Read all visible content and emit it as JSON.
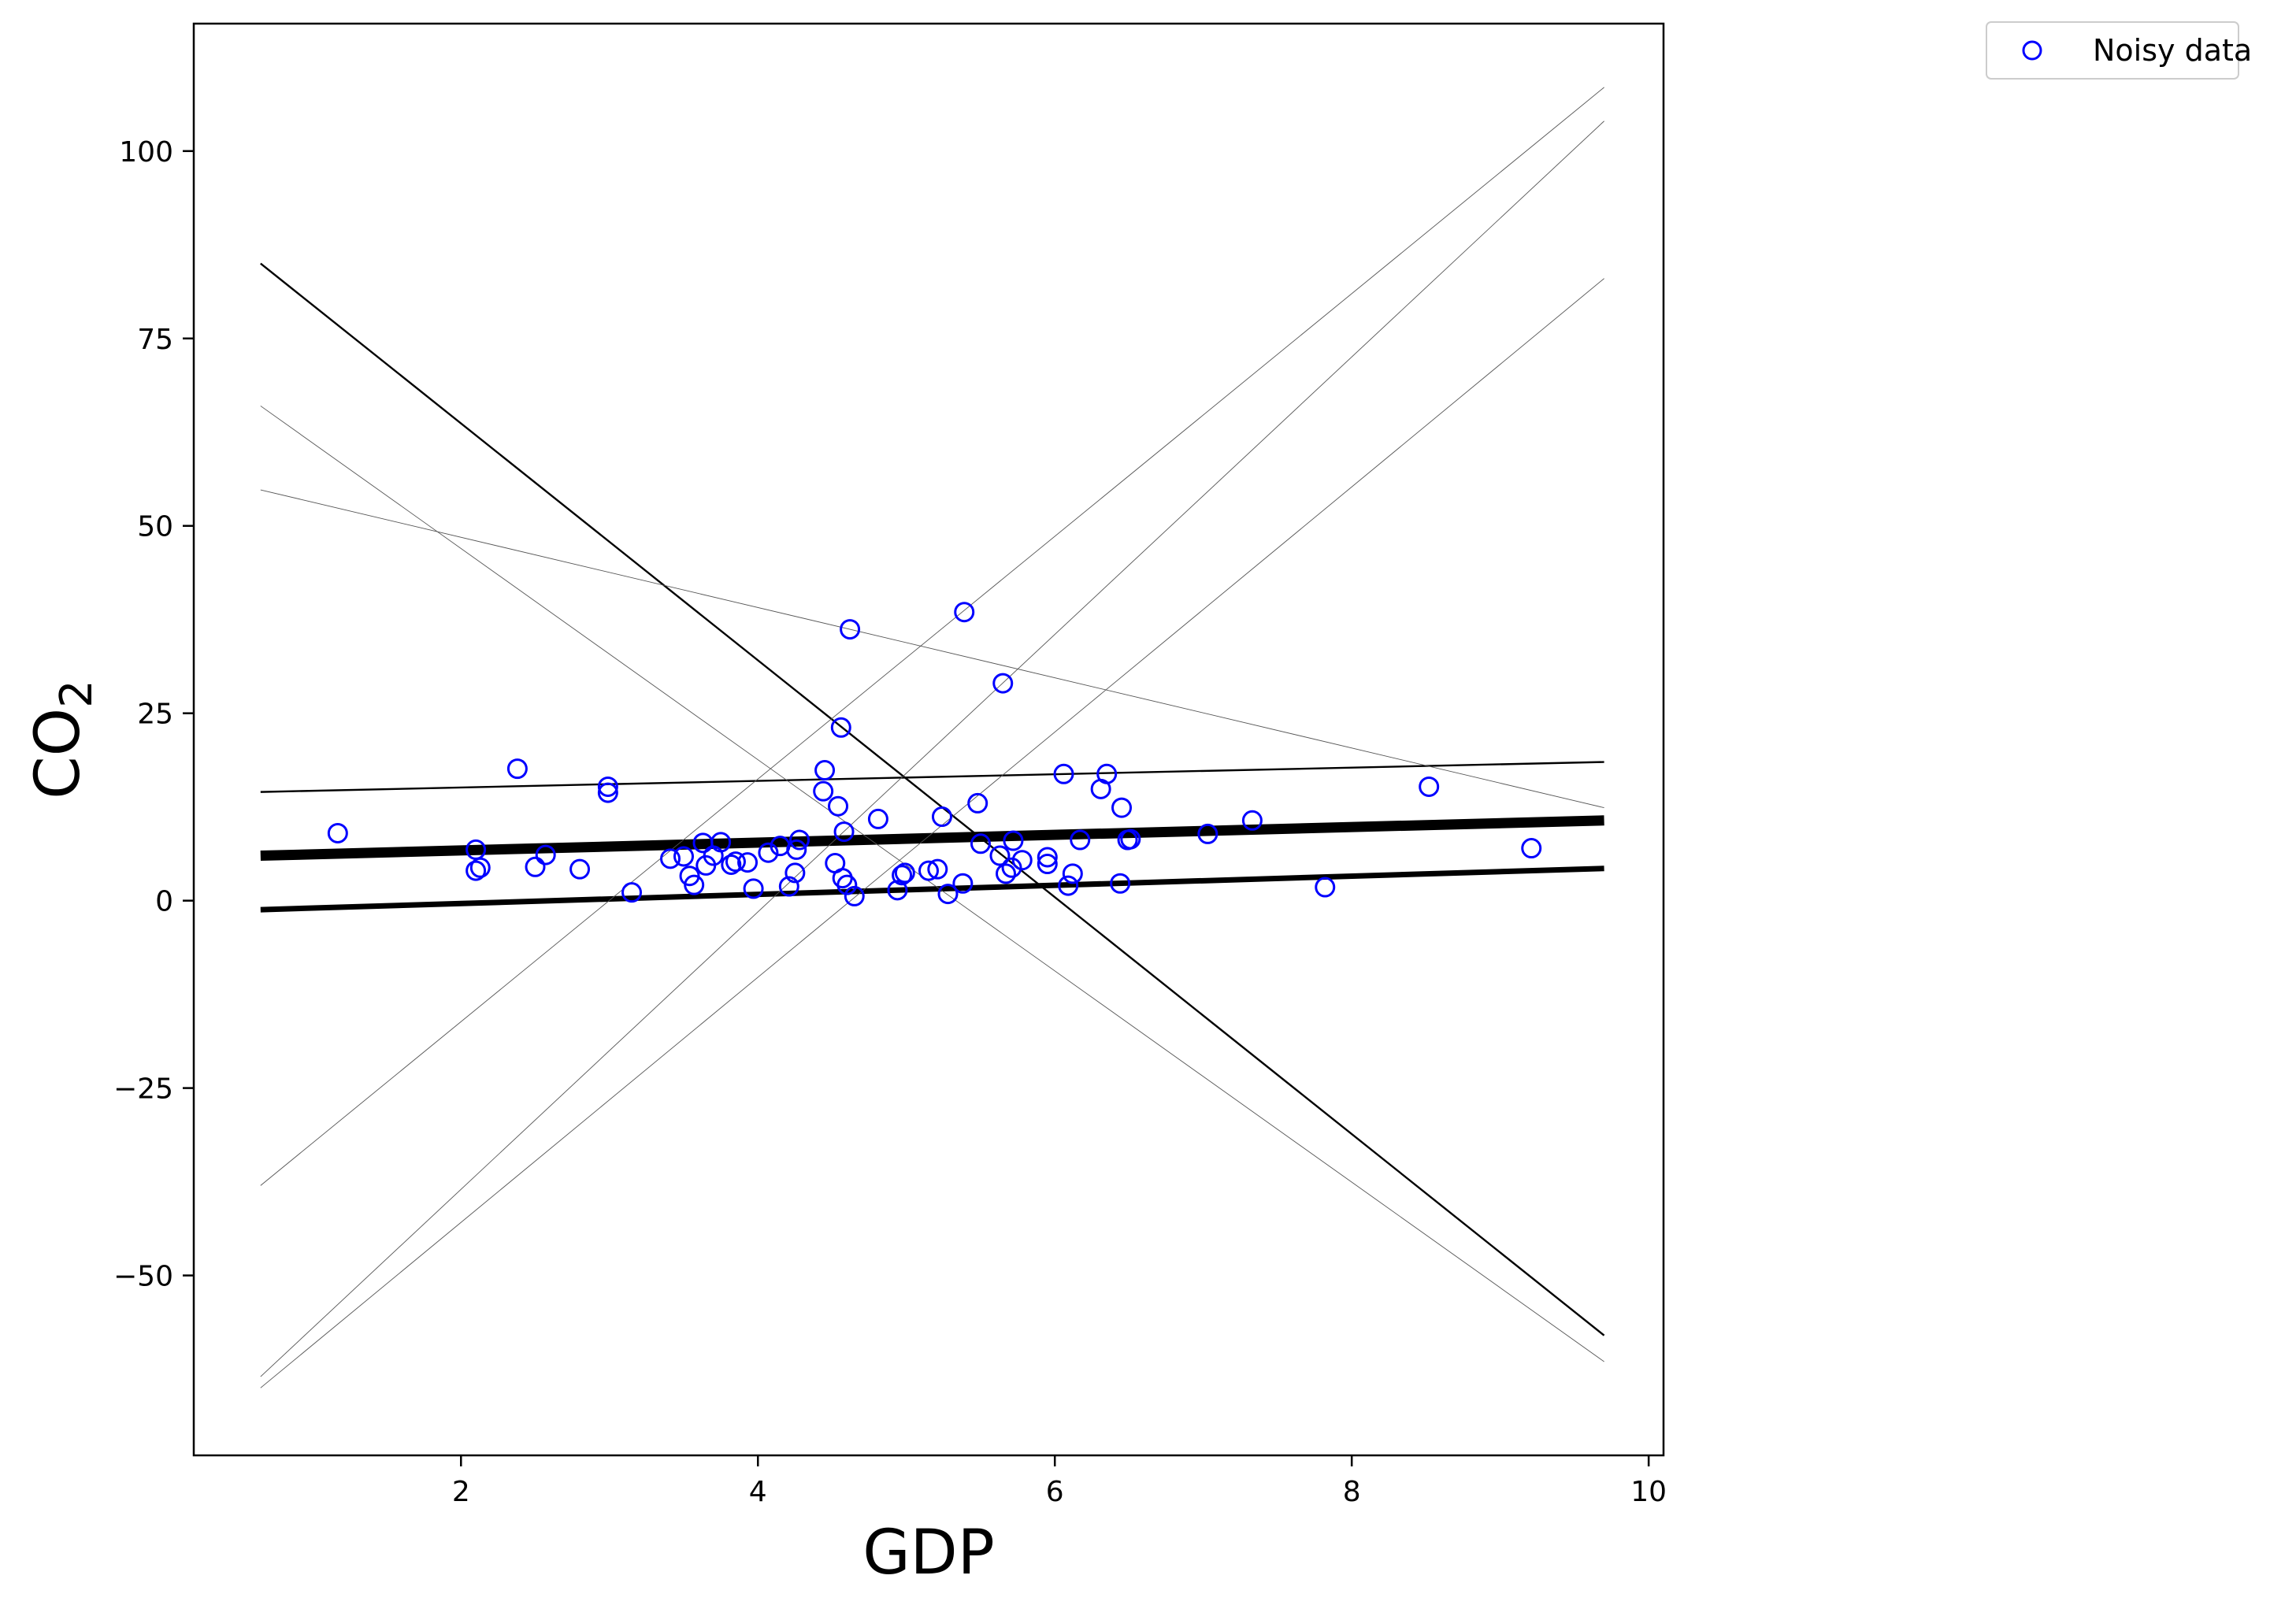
{
  "chart_data": {
    "type": "scatter",
    "xlabel": "GDP",
    "ylabel_main": "CO",
    "ylabel_sub": "2",
    "xlim": [
      0.2,
      10.1
    ],
    "ylim": [
      -74,
      117
    ],
    "xticks": [
      2,
      4,
      6,
      8,
      10
    ],
    "yticks": [
      -50,
      -25,
      0,
      25,
      50,
      75,
      100
    ],
    "ytick_labels": [
      "−50",
      "−25",
      "0",
      "25",
      "50",
      "75",
      "100"
    ],
    "grid": false,
    "legend": {
      "position": "outside-top-right",
      "label": "Noisy data"
    },
    "colors": {
      "points": "#0000ff",
      "lines": "#000000"
    },
    "series": [
      {
        "name": "Noisy data",
        "kind": "scatter",
        "points": [
          [
            1.17,
            9.0
          ],
          [
            2.1,
            6.8
          ],
          [
            2.1,
            4.0
          ],
          [
            2.13,
            4.4
          ],
          [
            2.38,
            17.6
          ],
          [
            2.5,
            4.5
          ],
          [
            2.57,
            6.1
          ],
          [
            2.8,
            4.2
          ],
          [
            2.99,
            15.2
          ],
          [
            2.99,
            14.4
          ],
          [
            3.15,
            1.1
          ],
          [
            3.41,
            5.6
          ],
          [
            3.5,
            5.9
          ],
          [
            3.54,
            3.3
          ],
          [
            3.57,
            2.1
          ],
          [
            3.63,
            7.7
          ],
          [
            3.65,
            4.7
          ],
          [
            3.7,
            6.0
          ],
          [
            3.75,
            7.8
          ],
          [
            3.82,
            4.8
          ],
          [
            3.85,
            5.2
          ],
          [
            3.93,
            5.1
          ],
          [
            3.97,
            1.6
          ],
          [
            4.07,
            6.4
          ],
          [
            4.15,
            7.3
          ],
          [
            4.21,
            1.9
          ],
          [
            4.25,
            3.7
          ],
          [
            4.26,
            6.8
          ],
          [
            4.28,
            8.1
          ],
          [
            4.44,
            14.6
          ],
          [
            4.45,
            17.4
          ],
          [
            4.52,
            5.0
          ],
          [
            4.54,
            12.6
          ],
          [
            4.56,
            23.1
          ],
          [
            4.57,
            3.0
          ],
          [
            4.58,
            9.2
          ],
          [
            4.6,
            2.1
          ],
          [
            4.62,
            36.2
          ],
          [
            4.65,
            0.6
          ],
          [
            4.81,
            10.9
          ],
          [
            4.94,
            1.4
          ],
          [
            4.97,
            3.4
          ],
          [
            4.99,
            3.7
          ],
          [
            5.15,
            4.0
          ],
          [
            5.21,
            4.2
          ],
          [
            5.24,
            11.2
          ],
          [
            5.28,
            0.9
          ],
          [
            5.38,
            2.3
          ],
          [
            5.39,
            38.5
          ],
          [
            5.48,
            13.0
          ],
          [
            5.5,
            7.6
          ],
          [
            5.63,
            6.0
          ],
          [
            5.65,
            29.0
          ],
          [
            5.67,
            3.6
          ],
          [
            5.71,
            4.4
          ],
          [
            5.72,
            8.0
          ],
          [
            5.78,
            5.4
          ],
          [
            5.95,
            4.9
          ],
          [
            5.95,
            5.8
          ],
          [
            6.06,
            16.9
          ],
          [
            6.09,
            2.0
          ],
          [
            6.12,
            3.6
          ],
          [
            6.17,
            8.1
          ],
          [
            6.31,
            14.9
          ],
          [
            6.35,
            16.9
          ],
          [
            6.44,
            2.3
          ],
          [
            6.45,
            12.4
          ],
          [
            6.49,
            8.1
          ],
          [
            6.51,
            8.2
          ],
          [
            7.03,
            8.9
          ],
          [
            7.33,
            10.7
          ],
          [
            7.82,
            1.8
          ],
          [
            8.52,
            15.2
          ],
          [
            9.21,
            7.0
          ]
        ]
      },
      {
        "kind": "line",
        "x": [
          0.65,
          9.7
        ],
        "y": [
          6.0,
          10.7
        ],
        "weight": "heavy"
      },
      {
        "kind": "line",
        "x": [
          0.65,
          9.7
        ],
        "y": [
          -1.2,
          4.3
        ],
        "weight": "medium"
      },
      {
        "kind": "line",
        "x": [
          0.65,
          9.7
        ],
        "y": [
          14.5,
          18.5
        ],
        "weight": "thin"
      },
      {
        "kind": "line",
        "x": [
          0.65,
          9.7
        ],
        "y": [
          85.0,
          -58.0
        ],
        "weight": "thin"
      },
      {
        "kind": "line",
        "x": [
          0.65,
          9.7
        ],
        "y": [
          66.0,
          -61.5
        ],
        "weight": "hairline"
      },
      {
        "kind": "line",
        "x": [
          0.65,
          9.7
        ],
        "y": [
          54.8,
          12.4
        ],
        "weight": "hairline"
      },
      {
        "kind": "line",
        "x": [
          0.65,
          9.7
        ],
        "y": [
          -38.0,
          108.5
        ],
        "weight": "hairline"
      },
      {
        "kind": "line",
        "x": [
          0.65,
          9.7
        ],
        "y": [
          -63.5,
          104.0
        ],
        "weight": "hairline"
      },
      {
        "kind": "line",
        "x": [
          0.65,
          9.7
        ],
        "y": [
          -65.0,
          83.0
        ],
        "weight": "hairline"
      }
    ]
  }
}
